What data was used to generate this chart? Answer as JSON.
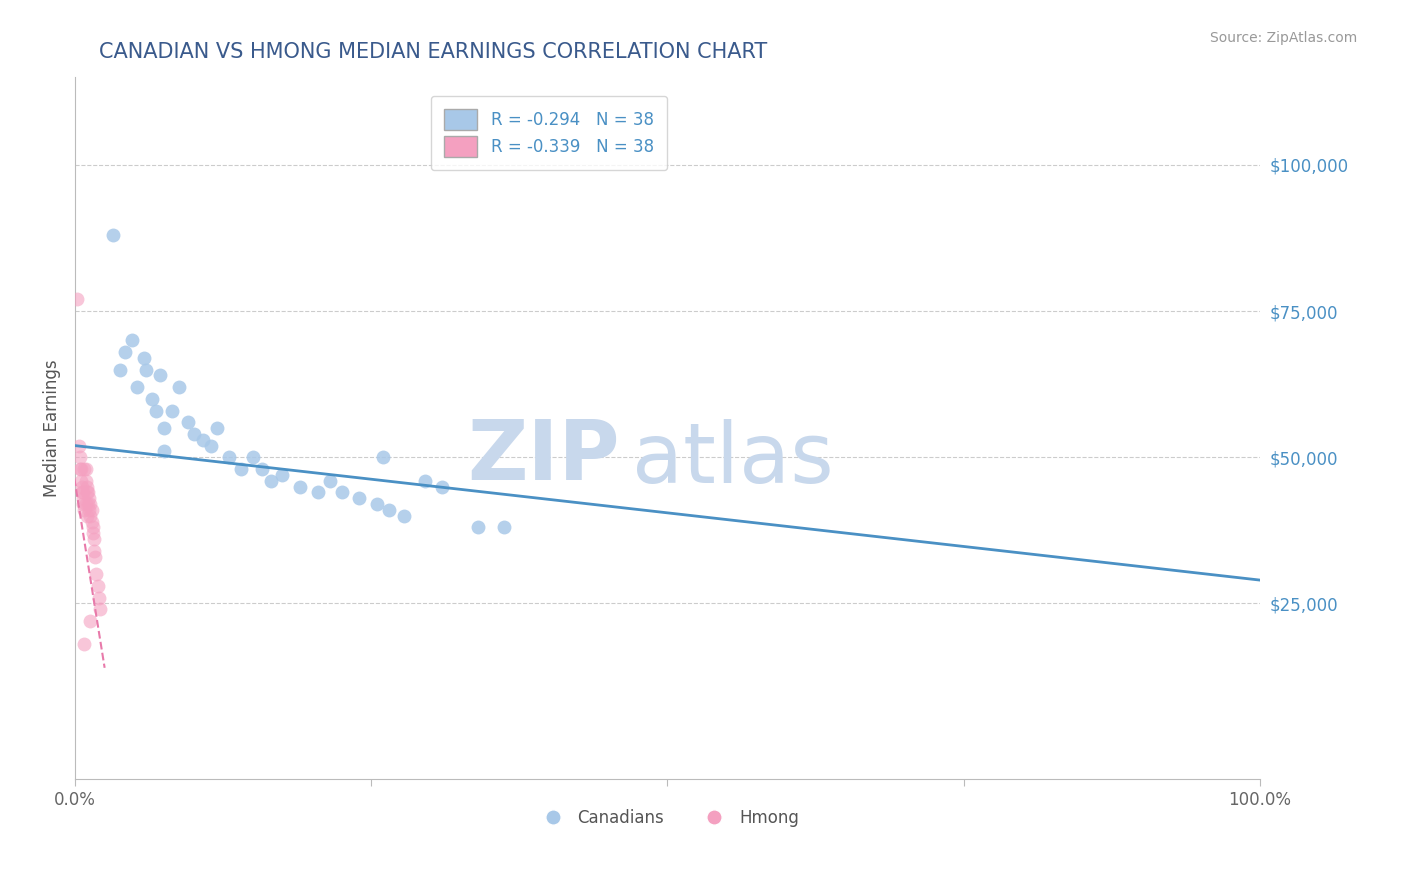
{
  "title": "CANADIAN VS HMONG MEDIAN EARNINGS CORRELATION CHART",
  "source": "Source: ZipAtlas.com",
  "ylabel": "Median Earnings",
  "xlim": [
    0.0,
    1.0
  ],
  "ylim": [
    -5000,
    115000
  ],
  "yticks": [
    25000,
    50000,
    75000,
    100000
  ],
  "ytick_labels": [
    "$25,000",
    "$50,000",
    "$75,000",
    "$100,000"
  ],
  "background_color": "#ffffff",
  "grid_color": "#cccccc",
  "title_color": "#3a5a8c",
  "source_color": "#999999",
  "axis_color": "#bbbbbb",
  "canadians_color": "#a8c8e8",
  "hmong_color": "#f4a0c0",
  "blue_line_color": "#4a90c4",
  "pink_line_color": "#e87aaa",
  "canadians_x": [
    0.032,
    0.038,
    0.042,
    0.048,
    0.052,
    0.058,
    0.06,
    0.065,
    0.068,
    0.072,
    0.075,
    0.082,
    0.088,
    0.095,
    0.1,
    0.108,
    0.115,
    0.12,
    0.13,
    0.14,
    0.15,
    0.158,
    0.165,
    0.175,
    0.19,
    0.205,
    0.215,
    0.225,
    0.24,
    0.255,
    0.265,
    0.278,
    0.075,
    0.34,
    0.362,
    0.26,
    0.295,
    0.31
  ],
  "canadians_y": [
    88000,
    65000,
    68000,
    70000,
    62000,
    67000,
    65000,
    60000,
    58000,
    64000,
    55000,
    58000,
    62000,
    56000,
    54000,
    53000,
    52000,
    55000,
    50000,
    48000,
    50000,
    48000,
    46000,
    47000,
    45000,
    44000,
    46000,
    44000,
    43000,
    42000,
    41000,
    40000,
    51000,
    38000,
    38000,
    50000,
    46000,
    45000
  ],
  "hmong_x": [
    0.002,
    0.003,
    0.004,
    0.004,
    0.005,
    0.005,
    0.006,
    0.006,
    0.007,
    0.007,
    0.007,
    0.008,
    0.008,
    0.009,
    0.009,
    0.009,
    0.01,
    0.01,
    0.01,
    0.011,
    0.011,
    0.012,
    0.012,
    0.013,
    0.013,
    0.014,
    0.014,
    0.015,
    0.015,
    0.016,
    0.016,
    0.017,
    0.018,
    0.019,
    0.02,
    0.021,
    0.013,
    0.008
  ],
  "hmong_y": [
    77000,
    52000,
    50000,
    48000,
    48000,
    46000,
    45000,
    44000,
    44000,
    43000,
    42000,
    48000,
    41000,
    48000,
    46000,
    42000,
    45000,
    44000,
    40000,
    44000,
    42000,
    43000,
    41000,
    42000,
    40000,
    41000,
    39000,
    38000,
    37000,
    36000,
    34000,
    33000,
    30000,
    28000,
    26000,
    24000,
    22000,
    18000
  ],
  "blue_trendline_x": [
    0.0,
    1.0
  ],
  "blue_trendline_y": [
    52000,
    29000
  ],
  "pink_trendline_x": [
    -0.005,
    0.025
  ],
  "pink_trendline_y": [
    52000,
    14000
  ],
  "watermark_zip": "ZIP",
  "watermark_atlas": "atlas",
  "watermark_color": "#c8d8ec",
  "dot_size": 100,
  "legend_entries": [
    {
      "label": "R = -0.294   N = 38"
    },
    {
      "label": "R = -0.339   N = 38"
    }
  ],
  "legend_labels": [
    "Canadians",
    "Hmong"
  ]
}
